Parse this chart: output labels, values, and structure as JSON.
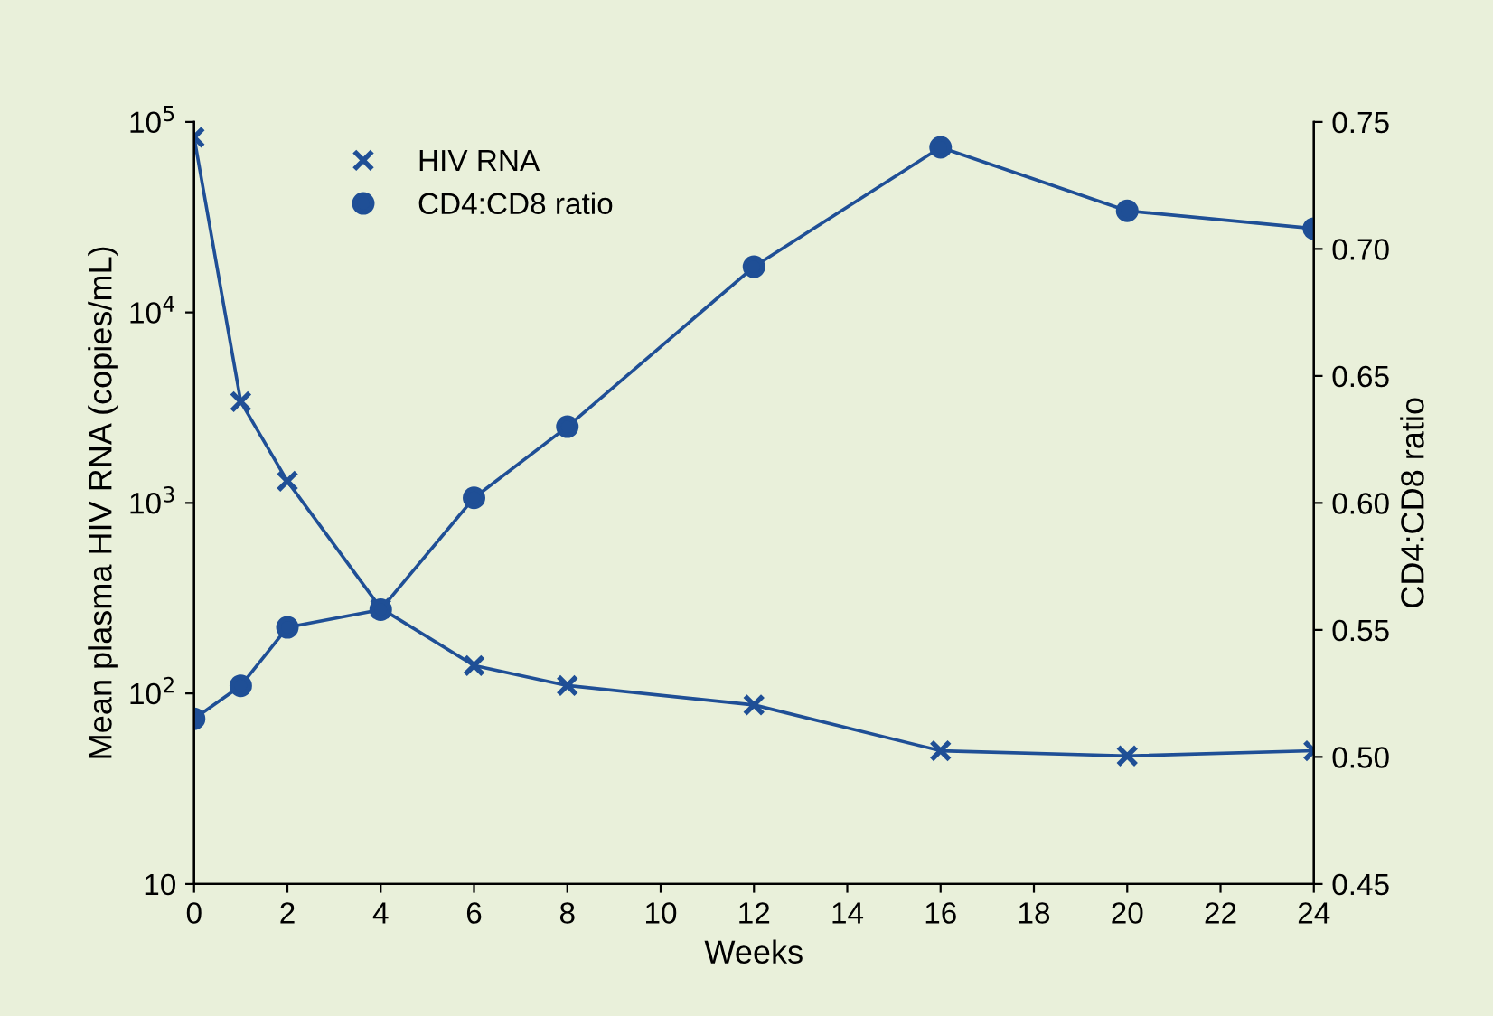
{
  "chart_data": {
    "type": "line",
    "xlabel": "Weeks",
    "ylabel": "Mean plasma HIV RNA (copies/mL)",
    "y2label": "CD4:CD8 ratio",
    "x": [
      0,
      1,
      2,
      4,
      6,
      8,
      12,
      16,
      20,
      24
    ],
    "series": [
      {
        "name": "HIV RNA",
        "color": "#1f4f96",
        "marker": "cross",
        "values": [
          83000,
          3400,
          1300,
          280,
          140,
          110,
          87,
          50,
          47,
          50
        ]
      },
      {
        "name": "CD4:CD8 ratio",
        "color": "#1f4f96",
        "marker": "circle",
        "axis": "y2",
        "values": [
          0.515,
          0.528,
          0.551,
          0.558,
          0.602,
          0.63,
          0.693,
          0.74,
          0.715,
          0.708
        ]
      }
    ],
    "xlim": [
      0,
      24
    ],
    "xticks": [
      0,
      2,
      4,
      6,
      8,
      10,
      12,
      14,
      16,
      18,
      20,
      22,
      24
    ],
    "log": "y",
    "ylim": [
      10,
      100000
    ],
    "yticks": [
      10,
      {
        "value": 100,
        "label": "10$^{2}$"
      },
      {
        "value": 1000,
        "label": "10$^{3}$"
      },
      {
        "value": 10000,
        "label": "10$^{4}$"
      },
      {
        "value": 100000,
        "label": "10$^{5}$"
      }
    ],
    "y2lim": [
      0.45,
      0.75
    ],
    "y2ticks": [
      0.45,
      {
        "value": 0.5,
        "label": "0.50"
      },
      0.55,
      {
        "value": 0.6,
        "label": "0.60"
      },
      0.65,
      {
        "value": 0.7,
        "label": "0.70"
      },
      0.75
    ],
    "grid": false,
    "legend": "top left",
    "line_style": "solid"
  }
}
